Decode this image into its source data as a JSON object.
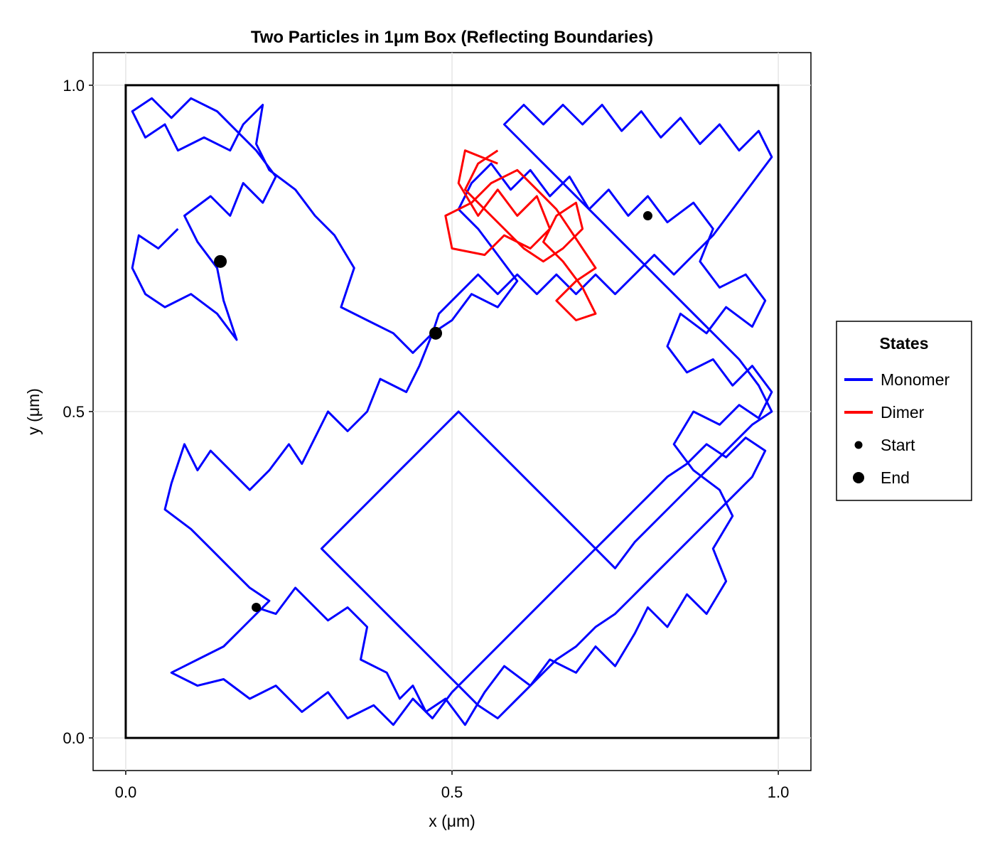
{
  "chart_data": {
    "type": "line",
    "title": "Two Particles in 1μm Box (Reflecting Boundaries)",
    "xlabel": "x (μm)",
    "ylabel": "y (μm)",
    "xlim": [
      -0.05,
      1.05
    ],
    "ylim": [
      -0.05,
      1.05
    ],
    "xticks": [
      0.0,
      0.5,
      1.0
    ],
    "yticks": [
      0.0,
      0.5,
      1.0
    ],
    "xtick_labels": [
      "0.0",
      "0.5",
      "1.0"
    ],
    "ytick_labels": [
      "0.0",
      "0.5",
      "1.0"
    ],
    "grid": true,
    "box": [
      [
        0,
        0
      ],
      [
        1,
        0
      ],
      [
        1,
        1
      ],
      [
        0,
        1
      ],
      [
        0,
        0
      ]
    ],
    "legend": {
      "title": "States",
      "placement": "right",
      "entries": [
        {
          "label": "Monomer",
          "kind": "line",
          "color": "#0000ff"
        },
        {
          "label": "Dimer",
          "kind": "line",
          "color": "#ff0000"
        },
        {
          "label": "Start",
          "kind": "marker-small",
          "color": "#000000"
        },
        {
          "label": "End",
          "kind": "marker-large",
          "color": "#000000"
        }
      ]
    },
    "colors": {
      "monomer": "#0000ff",
      "dimer": "#ff0000",
      "markers": "#000000",
      "box": "#000000",
      "grid": "#e5e5e5"
    },
    "series": [
      {
        "state": "Monomer",
        "points": [
          [
            0.2,
            0.2
          ],
          [
            0.23,
            0.19
          ],
          [
            0.26,
            0.23
          ],
          [
            0.31,
            0.18
          ],
          [
            0.34,
            0.2
          ],
          [
            0.37,
            0.17
          ],
          [
            0.36,
            0.12
          ],
          [
            0.4,
            0.1
          ],
          [
            0.42,
            0.06
          ],
          [
            0.44,
            0.08
          ],
          [
            0.46,
            0.04
          ],
          [
            0.49,
            0.06
          ],
          [
            0.52,
            0.02
          ],
          [
            0.55,
            0.07
          ],
          [
            0.58,
            0.11
          ],
          [
            0.62,
            0.08
          ],
          [
            0.65,
            0.12
          ],
          [
            0.69,
            0.1
          ],
          [
            0.72,
            0.14
          ],
          [
            0.75,
            0.11
          ],
          [
            0.78,
            0.16
          ],
          [
            0.8,
            0.2
          ],
          [
            0.83,
            0.17
          ],
          [
            0.86,
            0.22
          ],
          [
            0.89,
            0.19
          ],
          [
            0.92,
            0.24
          ],
          [
            0.9,
            0.29
          ],
          [
            0.93,
            0.34
          ],
          [
            0.91,
            0.38
          ],
          [
            0.87,
            0.41
          ],
          [
            0.84,
            0.45
          ],
          [
            0.87,
            0.5
          ],
          [
            0.91,
            0.48
          ],
          [
            0.94,
            0.51
          ],
          [
            0.97,
            0.49
          ],
          [
            0.99,
            0.53
          ],
          [
            0.96,
            0.57
          ],
          [
            0.93,
            0.54
          ],
          [
            0.9,
            0.58
          ],
          [
            0.86,
            0.56
          ],
          [
            0.83,
            0.6
          ],
          [
            0.85,
            0.65
          ],
          [
            0.89,
            0.62
          ],
          [
            0.92,
            0.66
          ],
          [
            0.96,
            0.63
          ],
          [
            0.98,
            0.67
          ],
          [
            0.95,
            0.71
          ],
          [
            0.91,
            0.69
          ],
          [
            0.88,
            0.73
          ],
          [
            0.9,
            0.78
          ],
          [
            0.87,
            0.82
          ],
          [
            0.83,
            0.79
          ],
          [
            0.8,
            0.83
          ],
          [
            0.77,
            0.8
          ],
          [
            0.74,
            0.84
          ],
          [
            0.71,
            0.81
          ],
          [
            0.68,
            0.86
          ],
          [
            0.65,
            0.83
          ],
          [
            0.62,
            0.87
          ],
          [
            0.59,
            0.84
          ],
          [
            0.56,
            0.88
          ],
          [
            0.53,
            0.85
          ],
          [
            0.51,
            0.81
          ],
          [
            0.54,
            0.78
          ],
          [
            0.57,
            0.74
          ],
          [
            0.6,
            0.7
          ],
          [
            0.57,
            0.66
          ],
          [
            0.53,
            0.68
          ],
          [
            0.5,
            0.64
          ],
          [
            0.47,
            0.62
          ]
        ]
      },
      {
        "state": "Monomer",
        "points": [
          [
            0.08,
            0.78
          ],
          [
            0.05,
            0.75
          ],
          [
            0.02,
            0.77
          ],
          [
            0.01,
            0.72
          ],
          [
            0.03,
            0.68
          ],
          [
            0.06,
            0.66
          ],
          [
            0.1,
            0.68
          ],
          [
            0.14,
            0.65
          ],
          [
            0.17,
            0.61
          ],
          [
            0.15,
            0.67
          ],
          [
            0.14,
            0.72
          ],
          [
            0.11,
            0.76
          ],
          [
            0.09,
            0.8
          ],
          [
            0.13,
            0.83
          ],
          [
            0.16,
            0.8
          ],
          [
            0.18,
            0.85
          ],
          [
            0.21,
            0.82
          ],
          [
            0.23,
            0.86
          ],
          [
            0.2,
            0.9
          ],
          [
            0.17,
            0.93
          ],
          [
            0.14,
            0.96
          ],
          [
            0.1,
            0.98
          ],
          [
            0.07,
            0.95
          ],
          [
            0.04,
            0.98
          ],
          [
            0.01,
            0.96
          ],
          [
            0.03,
            0.92
          ],
          [
            0.06,
            0.94
          ],
          [
            0.08,
            0.9
          ],
          [
            0.12,
            0.92
          ],
          [
            0.16,
            0.9
          ],
          [
            0.18,
            0.94
          ],
          [
            0.21,
            0.97
          ],
          [
            0.2,
            0.91
          ],
          [
            0.22,
            0.87
          ],
          [
            0.26,
            0.84
          ],
          [
            0.29,
            0.8
          ],
          [
            0.32,
            0.77
          ],
          [
            0.35,
            0.72
          ],
          [
            0.33,
            0.66
          ],
          [
            0.37,
            0.64
          ],
          [
            0.41,
            0.62
          ],
          [
            0.44,
            0.59
          ],
          [
            0.47,
            0.62
          ],
          [
            0.45,
            0.57
          ],
          [
            0.43,
            0.53
          ],
          [
            0.39,
            0.55
          ],
          [
            0.37,
            0.5
          ],
          [
            0.34,
            0.47
          ],
          [
            0.31,
            0.5
          ],
          [
            0.29,
            0.46
          ],
          [
            0.27,
            0.42
          ],
          [
            0.25,
            0.45
          ],
          [
            0.22,
            0.41
          ],
          [
            0.19,
            0.38
          ],
          [
            0.16,
            0.41
          ],
          [
            0.13,
            0.44
          ],
          [
            0.11,
            0.41
          ],
          [
            0.09,
            0.45
          ],
          [
            0.07,
            0.39
          ],
          [
            0.06,
            0.35
          ],
          [
            0.1,
            0.32
          ],
          [
            0.13,
            0.29
          ],
          [
            0.16,
            0.26
          ],
          [
            0.19,
            0.23
          ],
          [
            0.22,
            0.21
          ],
          [
            0.18,
            0.17
          ],
          [
            0.15,
            0.14
          ],
          [
            0.11,
            0.12
          ],
          [
            0.07,
            0.1
          ],
          [
            0.11,
            0.08
          ],
          [
            0.15,
            0.09
          ],
          [
            0.19,
            0.06
          ],
          [
            0.23,
            0.08
          ],
          [
            0.27,
            0.04
          ],
          [
            0.31,
            0.07
          ],
          [
            0.34,
            0.03
          ],
          [
            0.38,
            0.05
          ],
          [
            0.41,
            0.02
          ],
          [
            0.44,
            0.06
          ],
          [
            0.47,
            0.03
          ],
          [
            0.5,
            0.07
          ],
          [
            0.53,
            0.1
          ],
          [
            0.56,
            0.13
          ],
          [
            0.59,
            0.16
          ],
          [
            0.62,
            0.19
          ],
          [
            0.65,
            0.22
          ],
          [
            0.68,
            0.25
          ],
          [
            0.71,
            0.28
          ],
          [
            0.74,
            0.31
          ],
          [
            0.77,
            0.34
          ],
          [
            0.8,
            0.37
          ],
          [
            0.83,
            0.4
          ],
          [
            0.86,
            0.42
          ],
          [
            0.89,
            0.45
          ],
          [
            0.92,
            0.43
          ],
          [
            0.95,
            0.46
          ],
          [
            0.98,
            0.44
          ],
          [
            0.96,
            0.4
          ],
          [
            0.93,
            0.37
          ],
          [
            0.9,
            0.34
          ],
          [
            0.87,
            0.31
          ],
          [
            0.84,
            0.28
          ],
          [
            0.81,
            0.25
          ],
          [
            0.78,
            0.22
          ],
          [
            0.75,
            0.19
          ],
          [
            0.72,
            0.17
          ],
          [
            0.69,
            0.14
          ],
          [
            0.66,
            0.12
          ],
          [
            0.63,
            0.09
          ],
          [
            0.6,
            0.06
          ],
          [
            0.57,
            0.03
          ],
          [
            0.54,
            0.05
          ],
          [
            0.51,
            0.08
          ],
          [
            0.48,
            0.11
          ],
          [
            0.45,
            0.14
          ],
          [
            0.42,
            0.17
          ],
          [
            0.39,
            0.2
          ],
          [
            0.36,
            0.23
          ],
          [
            0.33,
            0.26
          ],
          [
            0.3,
            0.29
          ],
          [
            0.33,
            0.32
          ],
          [
            0.36,
            0.35
          ],
          [
            0.39,
            0.38
          ],
          [
            0.42,
            0.41
          ],
          [
            0.45,
            0.44
          ],
          [
            0.48,
            0.47
          ],
          [
            0.51,
            0.5
          ],
          [
            0.54,
            0.47
          ],
          [
            0.57,
            0.44
          ],
          [
            0.6,
            0.41
          ],
          [
            0.63,
            0.38
          ],
          [
            0.66,
            0.35
          ],
          [
            0.69,
            0.32
          ],
          [
            0.72,
            0.29
          ],
          [
            0.75,
            0.26
          ],
          [
            0.78,
            0.3
          ],
          [
            0.81,
            0.33
          ],
          [
            0.84,
            0.36
          ],
          [
            0.87,
            0.39
          ],
          [
            0.9,
            0.42
          ],
          [
            0.93,
            0.45
          ],
          [
            0.96,
            0.48
          ],
          [
            0.99,
            0.5
          ],
          [
            0.97,
            0.54
          ],
          [
            0.94,
            0.58
          ],
          [
            0.91,
            0.61
          ],
          [
            0.88,
            0.64
          ],
          [
            0.85,
            0.67
          ],
          [
            0.82,
            0.7
          ],
          [
            0.79,
            0.73
          ],
          [
            0.76,
            0.76
          ],
          [
            0.73,
            0.79
          ],
          [
            0.7,
            0.82
          ],
          [
            0.67,
            0.85
          ],
          [
            0.64,
            0.88
          ],
          [
            0.61,
            0.91
          ],
          [
            0.58,
            0.94
          ],
          [
            0.61,
            0.97
          ],
          [
            0.64,
            0.94
          ],
          [
            0.67,
            0.97
          ],
          [
            0.7,
            0.94
          ],
          [
            0.73,
            0.97
          ],
          [
            0.76,
            0.93
          ],
          [
            0.79,
            0.96
          ],
          [
            0.82,
            0.92
          ],
          [
            0.85,
            0.95
          ],
          [
            0.88,
            0.91
          ],
          [
            0.91,
            0.94
          ],
          [
            0.94,
            0.9
          ],
          [
            0.97,
            0.93
          ],
          [
            0.99,
            0.89
          ],
          [
            0.96,
            0.85
          ],
          [
            0.93,
            0.81
          ],
          [
            0.9,
            0.77
          ],
          [
            0.87,
            0.74
          ],
          [
            0.84,
            0.71
          ],
          [
            0.81,
            0.74
          ],
          [
            0.78,
            0.71
          ],
          [
            0.75,
            0.68
          ],
          [
            0.72,
            0.71
          ],
          [
            0.69,
            0.68
          ],
          [
            0.66,
            0.71
          ],
          [
            0.63,
            0.68
          ],
          [
            0.6,
            0.71
          ],
          [
            0.57,
            0.68
          ],
          [
            0.54,
            0.71
          ],
          [
            0.51,
            0.68
          ],
          [
            0.48,
            0.65
          ],
          [
            0.47,
            0.62
          ]
        ]
      },
      {
        "state": "Dimer",
        "points": [
          [
            0.57,
            0.88
          ],
          [
            0.52,
            0.9
          ],
          [
            0.51,
            0.85
          ],
          [
            0.54,
            0.8
          ],
          [
            0.57,
            0.84
          ],
          [
            0.6,
            0.8
          ],
          [
            0.63,
            0.83
          ],
          [
            0.65,
            0.78
          ],
          [
            0.62,
            0.75
          ],
          [
            0.58,
            0.77
          ],
          [
            0.55,
            0.74
          ],
          [
            0.5,
            0.75
          ],
          [
            0.49,
            0.8
          ],
          [
            0.53,
            0.82
          ],
          [
            0.56,
            0.85
          ],
          [
            0.6,
            0.87
          ],
          [
            0.63,
            0.84
          ],
          [
            0.66,
            0.81
          ],
          [
            0.68,
            0.78
          ],
          [
            0.7,
            0.75
          ],
          [
            0.72,
            0.72
          ],
          [
            0.69,
            0.7
          ],
          [
            0.66,
            0.67
          ],
          [
            0.69,
            0.64
          ],
          [
            0.72,
            0.65
          ],
          [
            0.7,
            0.69
          ],
          [
            0.67,
            0.73
          ],
          [
            0.64,
            0.76
          ],
          [
            0.66,
            0.8
          ],
          [
            0.69,
            0.82
          ],
          [
            0.7,
            0.78
          ],
          [
            0.67,
            0.75
          ],
          [
            0.64,
            0.73
          ],
          [
            0.61,
            0.75
          ],
          [
            0.58,
            0.78
          ],
          [
            0.55,
            0.81
          ],
          [
            0.52,
            0.84
          ],
          [
            0.54,
            0.88
          ],
          [
            0.57,
            0.9
          ]
        ]
      }
    ],
    "start_points": [
      [
        0.2,
        0.2
      ],
      [
        0.8,
        0.8
      ]
    ],
    "end_points": [
      [
        0.145,
        0.73
      ],
      [
        0.475,
        0.62
      ]
    ]
  }
}
